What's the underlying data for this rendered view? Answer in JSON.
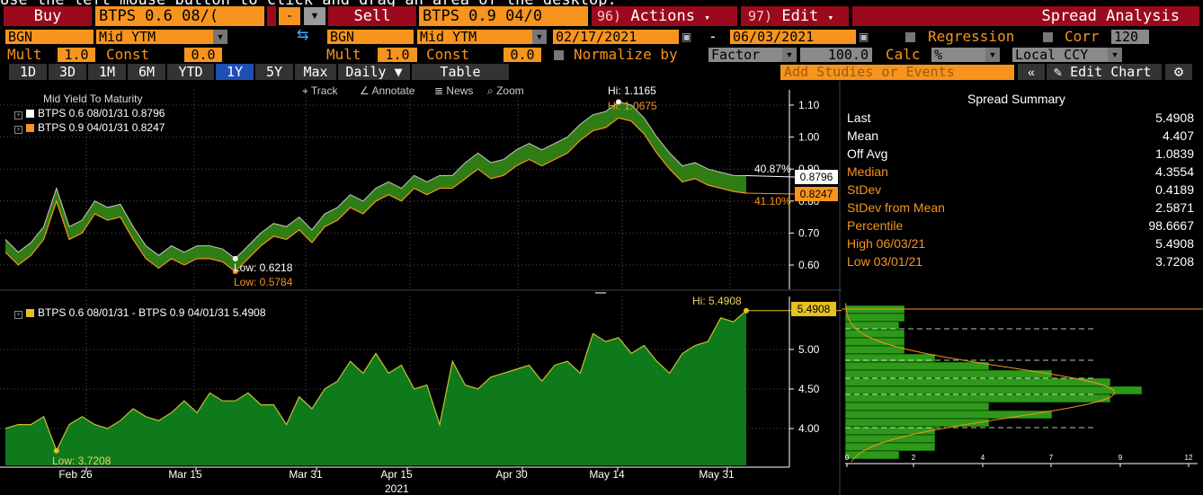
{
  "hint_text": "Use the left mouse button to click and drag an area of the desktop.",
  "toolbar1": {
    "buy_label": "Buy",
    "buy_security": "BTPS 0.6 08/(",
    "minus": "-",
    "sell_label": "Sell",
    "sell_security": "BTPS 0.9 04/0",
    "actions_num": "96)",
    "actions_label": "Actions",
    "edit_num": "97)",
    "edit_label": "Edit",
    "title": "Spread Analysis"
  },
  "toolbar2": {
    "buy_source": "BGN",
    "buy_field": "Mid YTM",
    "sell_source": "BGN",
    "sell_field": "Mid YTM",
    "start_date": "02/17/2021",
    "dash": "-",
    "end_date": "06/03/2021",
    "regression_label": "Regression",
    "corr_label": "Corr",
    "corr_value": "120"
  },
  "toolbar3": {
    "mult_label": "Mult",
    "mult_value": "1.0",
    "const_label": "Const",
    "const_value": "0.0",
    "mult2_label": "Mult",
    "mult2_value": "1.0",
    "const2_label": "Const",
    "const2_value": "0.0",
    "normalize_label": "Normalize by",
    "normalize_value": "Factor",
    "factor_value": "100.0",
    "calc_label": "Calc",
    "calc_value": "%",
    "ccy_value": "Local CCY"
  },
  "tabs": [
    "1D",
    "3D",
    "1M",
    "6M",
    "YTD",
    "1Y",
    "5Y",
    "Max",
    "Daily ▼",
    "Table"
  ],
  "active_tab": "1Y",
  "studies_placeholder": "Add Studies or Events",
  "edit_chart": "Edit Chart",
  "top_chart": {
    "title": "Mid Yield To Maturity",
    "legend": [
      {
        "label": "BTPS 0.6 08/01/31 0.8796",
        "color": "#ffffff"
      },
      {
        "label": "BTPS 0.9 04/01/31 0.8247",
        "color": "#f7941d"
      }
    ],
    "tools": [
      "Track",
      "Annotate",
      "News",
      "Zoom"
    ],
    "yticks": [
      "1.10",
      "1.00",
      "0.90",
      "0.80",
      "0.70",
      "0.60"
    ],
    "hi_white": "Hi: 1.1165",
    "hi_orange": "Hi: 1.0675",
    "low_white": "Low: 0.6218",
    "low_orange": "Low: 0.5784",
    "last_white": "0.8796",
    "last_orange": "0.8247",
    "pct_white": "40.87%",
    "pct_orange": "41.10%"
  },
  "bottom_chart": {
    "legend": "BTPS 0.6 08/01/31 - BTPS 0.9 04/01/31 5.4908",
    "yticks": [
      "5.00",
      "4.50",
      "4.00"
    ],
    "hi": "Hi: 5.4908",
    "low": "Low: 3.7208",
    "last": "5.4908",
    "xticks": [
      "Feb 26",
      "Mar 15",
      "Mar 31",
      "Apr 15",
      "Apr 30",
      "May 14",
      "May 31"
    ],
    "year": "2021",
    "hist_ticks": [
      "0",
      "2",
      "4",
      "7",
      "9",
      "12"
    ]
  },
  "summary": {
    "title": "Spread Summary",
    "rows": [
      {
        "k": "Last",
        "v": "5.4908",
        "orange": false
      },
      {
        "k": "Mean",
        "v": "4.407",
        "orange": false
      },
      {
        "k": "Off Avg",
        "v": "1.0839",
        "orange": false
      },
      {
        "k": "Median",
        "v": "4.3554",
        "orange": true
      },
      {
        "k": "StDev",
        "v": "0.4189",
        "orange": true
      },
      {
        "k": "StDev from Mean",
        "v": "2.5871",
        "orange": true
      },
      {
        "k": "Percentile",
        "v": "98.6667",
        "orange": true
      },
      {
        "k": "High 06/03/21",
        "v": "5.4908",
        "orange": true
      },
      {
        "k": "Low 03/01/21",
        "v": "3.7208",
        "orange": true
      }
    ]
  },
  "chart_data": [
    {
      "type": "line",
      "title": "Mid Yield To Maturity",
      "ylim": [
        0.55,
        1.15
      ],
      "series": [
        {
          "name": "BTPS 0.6 08/01/31",
          "values": [
            0.68,
            0.64,
            0.67,
            0.72,
            0.84,
            0.72,
            0.74,
            0.8,
            0.78,
            0.79,
            0.72,
            0.66,
            0.63,
            0.66,
            0.64,
            0.66,
            0.66,
            0.65,
            0.62,
            0.66,
            0.7,
            0.73,
            0.72,
            0.75,
            0.71,
            0.76,
            0.78,
            0.82,
            0.8,
            0.84,
            0.86,
            0.84,
            0.88,
            0.86,
            0.88,
            0.88,
            0.92,
            0.95,
            0.92,
            0.93,
            0.96,
            0.98,
            0.96,
            0.98,
            1.0,
            1.04,
            1.07,
            1.08,
            1.11,
            1.1,
            1.06,
            1.0,
            0.95,
            0.91,
            0.92,
            0.9,
            0.89,
            0.88,
            0.8796
          ]
        },
        {
          "name": "BTPS 0.9 04/01/31",
          "values": [
            0.64,
            0.6,
            0.63,
            0.68,
            0.8,
            0.68,
            0.7,
            0.76,
            0.74,
            0.75,
            0.68,
            0.62,
            0.59,
            0.62,
            0.6,
            0.62,
            0.62,
            0.61,
            0.58,
            0.62,
            0.66,
            0.69,
            0.68,
            0.71,
            0.67,
            0.72,
            0.74,
            0.78,
            0.76,
            0.8,
            0.82,
            0.8,
            0.84,
            0.82,
            0.84,
            0.84,
            0.87,
            0.9,
            0.87,
            0.88,
            0.91,
            0.93,
            0.91,
            0.93,
            0.95,
            0.99,
            1.02,
            1.03,
            1.06,
            1.05,
            1.01,
            0.95,
            0.9,
            0.86,
            0.87,
            0.85,
            0.84,
            0.83,
            0.8247
          ]
        }
      ]
    },
    {
      "type": "area",
      "ylim": [
        3.6,
        5.55
      ],
      "series": [
        {
          "name": "BTPS 0.6 08/01/31 - BTPS 0.9 04/01/31",
          "values": [
            4.0,
            4.05,
            4.05,
            4.15,
            3.72,
            4.05,
            4.15,
            4.05,
            4.0,
            4.1,
            4.25,
            4.15,
            4.1,
            4.2,
            4.35,
            4.2,
            4.45,
            4.35,
            4.35,
            4.45,
            4.3,
            4.3,
            4.05,
            4.4,
            4.25,
            4.5,
            4.6,
            4.85,
            4.7,
            4.95,
            4.7,
            4.8,
            4.5,
            4.55,
            4.05,
            4.85,
            4.55,
            4.5,
            4.65,
            4.7,
            4.75,
            4.8,
            4.6,
            4.8,
            4.85,
            4.7,
            5.2,
            5.1,
            5.15,
            4.95,
            5.05,
            4.85,
            4.7,
            4.95,
            5.05,
            5.1,
            5.4,
            5.35,
            5.4908
          ]
        }
      ]
    }
  ]
}
